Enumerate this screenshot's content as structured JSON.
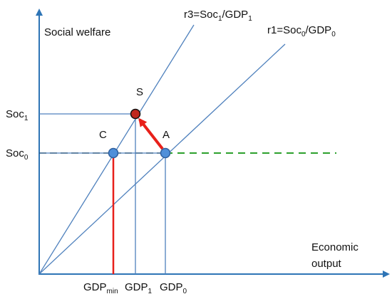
{
  "axes": {
    "y_label": "Social welfare",
    "x_label": [
      "Economic",
      "output"
    ]
  },
  "rays": [
    {
      "label": [
        "r3=Soc",
        "1",
        "/GDP",
        "1"
      ]
    },
    {
      "label": [
        "r1=Soc",
        "0",
        "/GDP",
        "0"
      ]
    }
  ],
  "points": [
    {
      "label": "S"
    },
    {
      "label": "C"
    },
    {
      "label": "A"
    }
  ],
  "y_labels": [
    [
      "Soc",
      "1"
    ],
    [
      "Soc",
      "0"
    ]
  ],
  "x_labels": [
    [
      "GDP",
      "min"
    ],
    [
      "GDP",
      "1"
    ],
    [
      "GDP",
      "0"
    ]
  ]
}
